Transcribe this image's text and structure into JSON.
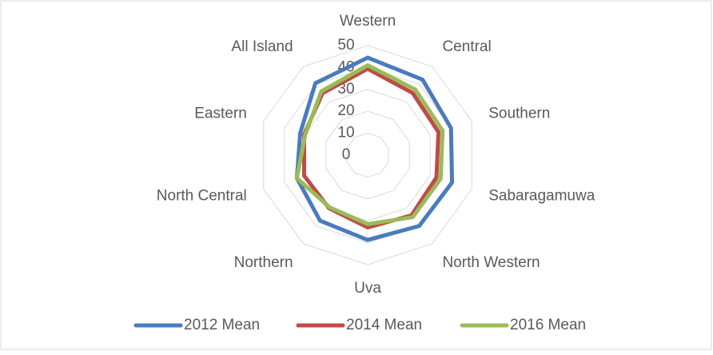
{
  "chart_data": {
    "type": "radar",
    "categories": [
      "Western",
      "Central",
      "Southern",
      "Sabaragamuwa",
      "North Western",
      "Uva",
      "Northern",
      "North Central",
      "Eastern",
      "All Island"
    ],
    "ylim": [
      0,
      50
    ],
    "yticks": [
      0,
      10,
      20,
      30,
      40,
      50
    ],
    "grid": true,
    "legend": "bottom",
    "series": [
      {
        "name": "2012 Mean",
        "color": "#4a7bbf",
        "values": [
          44.5,
          42.6,
          40,
          40.5,
          40,
          38.7,
          37,
          34,
          32.4,
          40.6
        ]
      },
      {
        "name": "2014 Mean",
        "color": "#be4b48",
        "values": [
          39.4,
          35,
          34,
          33,
          34,
          33,
          30,
          30.5,
          30.5,
          35
        ]
      },
      {
        "name": "2016 Mean",
        "color": "#9bbb59",
        "values": [
          41,
          37,
          36,
          35,
          35,
          31.5,
          29.5,
          34,
          30,
          36
        ]
      }
    ]
  }
}
